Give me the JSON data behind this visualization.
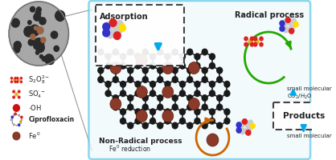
{
  "bg_color": "#ffffff",
  "main_box_edge": "#5bc8e8",
  "main_box_face": "#eef8fc",
  "adsorption_label": "Adsorption",
  "radical_label": "Radical process",
  "nonradical_label": "Non-Radical process",
  "fe_reduction_label": "Fe° reduction",
  "products_label": "Products",
  "small_mol_label1": "small molecular\nCO₂/H₂O",
  "small_mol_label2": "small molecular",
  "legend_labels": [
    "S₂O₈²⁻",
    "SO₄·⁻",
    "·OH",
    "Ciprofloxacin",
    "Fe°"
  ],
  "graphene_c_color": "#1a1a1a",
  "graphene_bond_color": "#222222",
  "fe_color": "#8b3a2a",
  "s2o8_s_color": "#e8c030",
  "s2o8_o_color": "#dd2222",
  "so4_s_color": "#e8c030",
  "so4_o_color": "#dd2222",
  "oh_color": "#cc1111",
  "cyan_arrow": "#00aaee",
  "green_arrow": "#22aa00",
  "orange_arrow": "#cc6600"
}
